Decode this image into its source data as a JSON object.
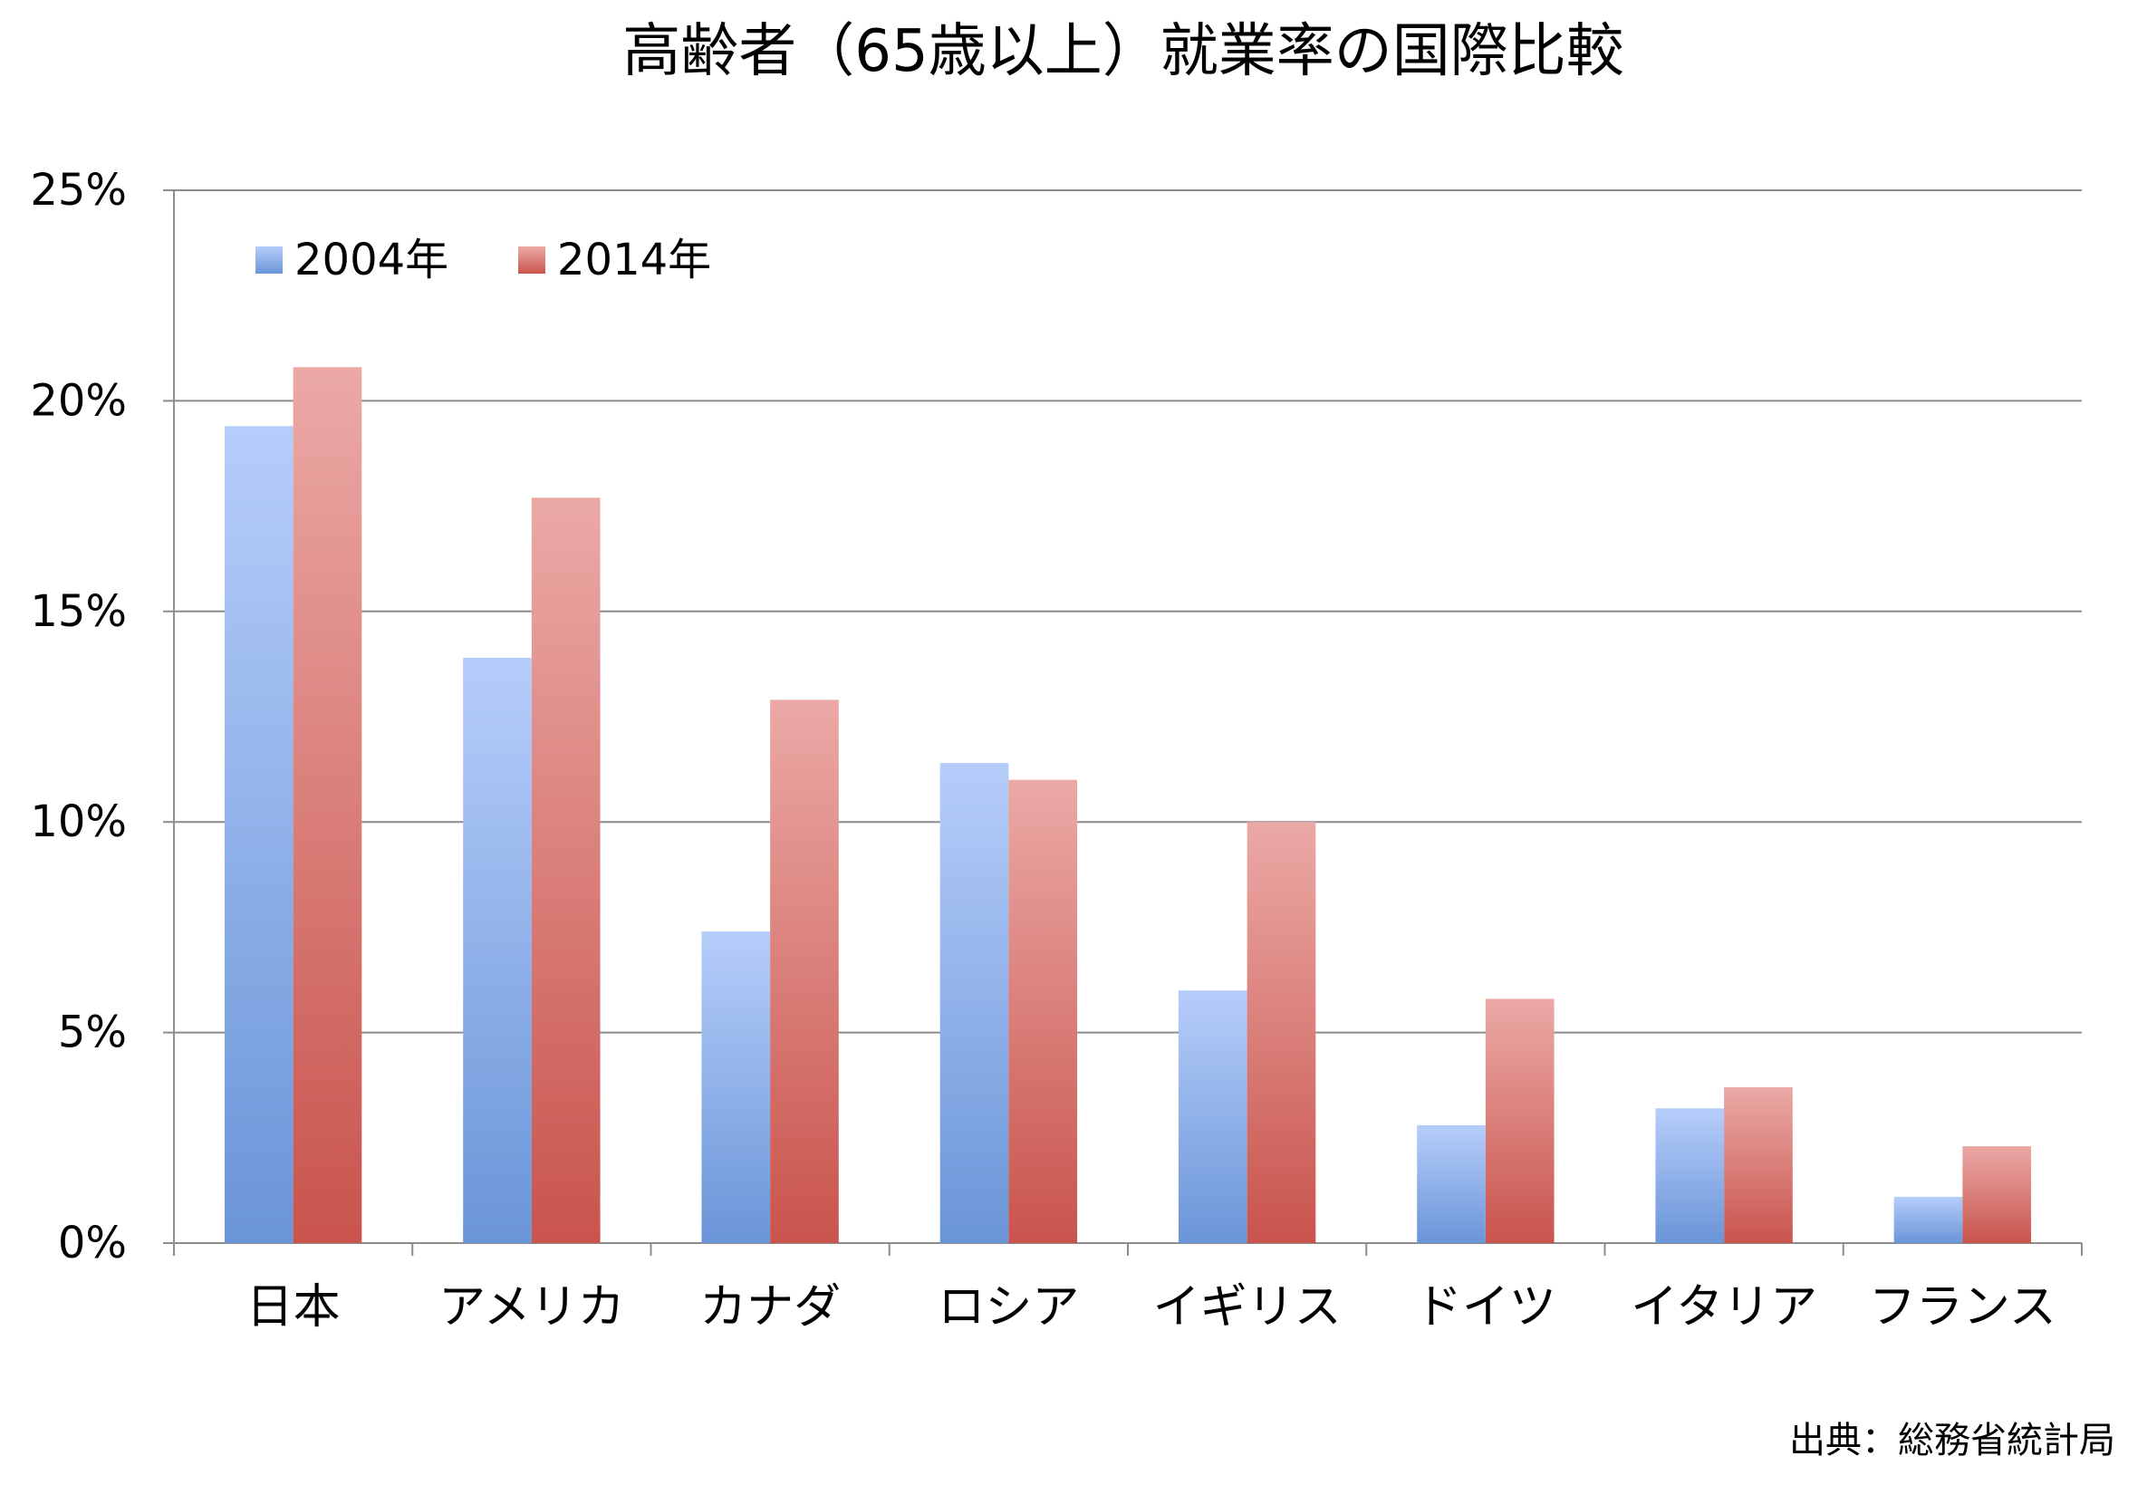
{
  "chart_data": {
    "type": "bar",
    "title": "高齢者（65歳以上）就業率の国際比較",
    "categories": [
      "日本",
      "アメリカ",
      "カナダ",
      "ロシア",
      "イギリス",
      "ドイツ",
      "イタリア",
      "フランス"
    ],
    "series": [
      {
        "name": "2004年",
        "values": [
          19.4,
          13.9,
          7.4,
          11.4,
          6.0,
          2.8,
          3.2,
          1.1
        ],
        "color": "#7fa2e0"
      },
      {
        "name": "2014年",
        "values": [
          20.8,
          17.7,
          12.9,
          11.0,
          10.0,
          5.8,
          3.7,
          2.3
        ],
        "color": "#d87670"
      }
    ],
    "xlabel": "",
    "ylabel": "",
    "ylim": [
      0,
      25
    ],
    "y_ticks": [
      "0%",
      "5%",
      "10%",
      "15%",
      "20%",
      "25%"
    ],
    "grid": true,
    "legend_position": "top-left",
    "source": "出典：総務省統計局"
  }
}
